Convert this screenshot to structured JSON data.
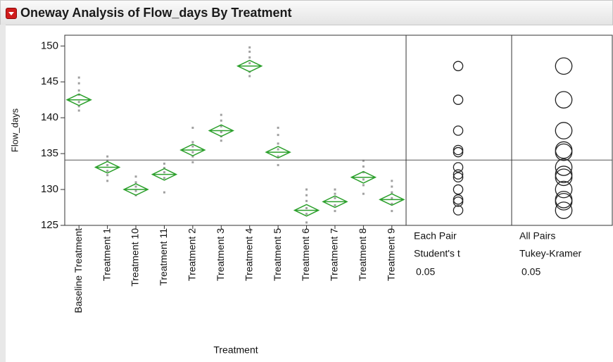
{
  "title": "Oneway Analysis of Flow_days By Treatment",
  "chart_data": {
    "type": "oneway",
    "x_label": "Treatment",
    "y_label": "Flow_days",
    "categories": [
      "Baseline Treatment",
      "Treatment 1",
      "Treatment 10",
      "Treatment 11",
      "Treatment 2",
      "Treatment 3",
      "Treatment 4",
      "Treatment 5",
      "Treatment 6",
      "Treatment 7",
      "Treatment 8",
      "Treatment 9"
    ],
    "means": [
      142.5,
      133.1,
      130.0,
      132.1,
      135.5,
      138.2,
      147.2,
      135.2,
      127.1,
      128.3,
      131.7,
      128.6
    ],
    "ci_half": 0.8,
    "grand_mean": 134.1,
    "points": [
      [
        145.6,
        144.8,
        143.8,
        143.2,
        142.2,
        141.6,
        141.0
      ],
      [
        134.6,
        134.0,
        133.4,
        132.6,
        132.0,
        131.2
      ],
      [
        131.8,
        131.0,
        130.4,
        129.8,
        129.2
      ],
      [
        133.6,
        133.0,
        132.4,
        131.6,
        129.6
      ],
      [
        138.6,
        136.6,
        136.0,
        135.2,
        134.6,
        133.8
      ],
      [
        140.4,
        139.6,
        138.8,
        138.0,
        137.4,
        136.8
      ],
      [
        149.8,
        149.2,
        148.4,
        147.6,
        146.4,
        145.8
      ],
      [
        138.6,
        137.6,
        136.4,
        135.6,
        134.6,
        133.4
      ],
      [
        130.0,
        129.2,
        128.4,
        127.4,
        126.6,
        125.4
      ],
      [
        130.0,
        129.4,
        128.8,
        127.8,
        127.0
      ],
      [
        134.0,
        133.2,
        132.4,
        131.4,
        130.6,
        129.4
      ],
      [
        131.2,
        130.4,
        129.6,
        128.8,
        128.0,
        127.0
      ]
    ],
    "diamond_color": "#2ca02c",
    "point_color": "#a0a0a0",
    "ylim": [
      125,
      151.5
    ],
    "yticks": [
      125,
      130,
      135,
      140,
      145,
      150
    ],
    "comparison_circles": [
      {
        "method": "Each Pair",
        "test": "Student's t",
        "alpha": 0.05,
        "radius": 0.65
      },
      {
        "method": "All Pairs",
        "test": "Tukey-Kramer",
        "alpha": 0.05,
        "radius": 1.15
      }
    ]
  }
}
